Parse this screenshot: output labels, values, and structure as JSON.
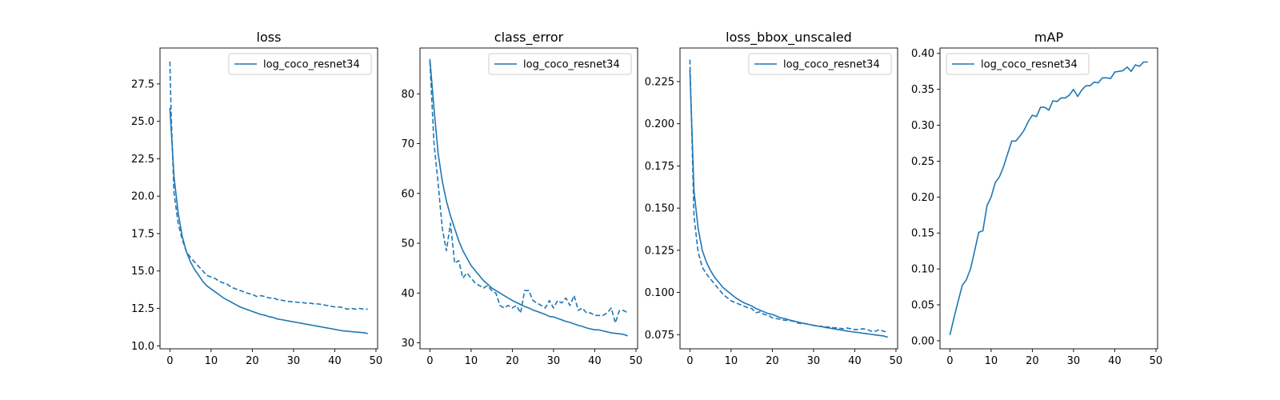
{
  "chart_data": [
    {
      "type": "line",
      "title": "loss",
      "xlim": [
        -2.4,
        50.4
      ],
      "ylim": [
        9.8,
        29.9
      ],
      "xticks": [
        0,
        10,
        20,
        30,
        40,
        50
      ],
      "xtick_labels": [
        "0",
        "10",
        "20",
        "30",
        "40",
        "50"
      ],
      "yticks": [
        10.0,
        12.5,
        15.0,
        17.5,
        20.0,
        22.5,
        25.0,
        27.5
      ],
      "ytick_labels": [
        "10.0",
        "12.5",
        "15.0",
        "17.5",
        "20.0",
        "22.5",
        "25.0",
        "27.5"
      ],
      "legend": {
        "label": "log_coco_resnet34",
        "position": "upper right"
      },
      "series": [
        {
          "name": "log_coco_resnet34",
          "style": "solid",
          "color": "#1f77b4",
          "x": [
            0,
            1,
            2,
            3,
            4,
            5,
            6,
            7,
            8,
            9,
            10,
            11,
            12,
            13,
            14,
            15,
            16,
            17,
            18,
            19,
            20,
            21,
            22,
            23,
            24,
            25,
            26,
            27,
            28,
            29,
            30,
            31,
            32,
            33,
            34,
            35,
            36,
            37,
            38,
            39,
            40,
            41,
            42,
            43,
            44,
            45,
            46,
            47,
            48
          ],
          "y": [
            25.9,
            21.3,
            18.9,
            17.3,
            16.3,
            15.6,
            15.1,
            14.7,
            14.3,
            14.0,
            13.8,
            13.6,
            13.4,
            13.2,
            13.05,
            12.9,
            12.75,
            12.6,
            12.5,
            12.4,
            12.3,
            12.2,
            12.1,
            12.05,
            11.95,
            11.9,
            11.8,
            11.75,
            11.7,
            11.65,
            11.6,
            11.55,
            11.5,
            11.45,
            11.4,
            11.35,
            11.3,
            11.25,
            11.2,
            11.15,
            11.1,
            11.05,
            11.0,
            10.98,
            10.95,
            10.92,
            10.9,
            10.88,
            10.82
          ]
        },
        {
          "name": "",
          "style": "dashed",
          "color": "#1f77b4",
          "x": [
            0,
            0.3,
            1,
            2,
            3,
            4,
            5,
            6,
            7,
            8,
            9,
            10,
            11,
            12,
            13,
            14,
            15,
            16,
            17,
            18,
            19,
            20,
            21,
            22,
            23,
            24,
            25,
            26,
            27,
            28,
            29,
            30,
            31,
            32,
            33,
            34,
            35,
            36,
            37,
            38,
            39,
            40,
            41,
            42,
            43,
            44,
            45,
            46,
            47,
            48
          ],
          "y": [
            29.0,
            25.5,
            20.2,
            18.2,
            17.1,
            16.3,
            15.9,
            15.6,
            15.3,
            15.0,
            14.7,
            14.6,
            14.5,
            14.3,
            14.2,
            14.1,
            13.9,
            13.8,
            13.7,
            13.6,
            13.5,
            13.45,
            13.3,
            13.35,
            13.3,
            13.2,
            13.2,
            13.1,
            13.05,
            13.0,
            12.95,
            12.95,
            12.9,
            12.9,
            12.85,
            12.85,
            12.8,
            12.8,
            12.75,
            12.7,
            12.65,
            12.6,
            12.6,
            12.55,
            12.45,
            12.5,
            12.45,
            12.5,
            12.45,
            12.45
          ]
        }
      ]
    },
    {
      "type": "line",
      "title": "class_error",
      "xlim": [
        -2.4,
        50.4
      ],
      "ylim": [
        28.8,
        89.2
      ],
      "xticks": [
        0,
        10,
        20,
        30,
        40,
        50
      ],
      "xtick_labels": [
        "0",
        "10",
        "20",
        "30",
        "40",
        "50"
      ],
      "yticks": [
        30,
        40,
        50,
        60,
        70,
        80
      ],
      "ytick_labels": [
        "30",
        "40",
        "50",
        "60",
        "70",
        "80"
      ],
      "legend": {
        "label": "log_coco_resnet34",
        "position": "upper right"
      },
      "series": [
        {
          "name": "log_coco_resnet34",
          "style": "solid",
          "color": "#1f77b4",
          "x": [
            0,
            1,
            2,
            3,
            4,
            5,
            6,
            7,
            8,
            9,
            10,
            11,
            12,
            13,
            14,
            15,
            16,
            17,
            18,
            19,
            20,
            21,
            22,
            23,
            24,
            25,
            26,
            27,
            28,
            29,
            30,
            31,
            32,
            33,
            34,
            35,
            36,
            37,
            38,
            39,
            40,
            41,
            42,
            43,
            44,
            45,
            46,
            47,
            48
          ],
          "y": [
            87.0,
            77.0,
            68.0,
            62.5,
            58.5,
            55.5,
            53.0,
            50.5,
            48.5,
            47.0,
            45.5,
            44.5,
            43.5,
            42.5,
            41.8,
            41.0,
            40.5,
            40.0,
            39.5,
            39.0,
            38.5,
            38.1,
            37.7,
            37.3,
            37.0,
            36.6,
            36.3,
            36.0,
            35.7,
            35.3,
            35.2,
            34.9,
            34.6,
            34.3,
            34.1,
            33.8,
            33.5,
            33.3,
            33.0,
            32.8,
            32.6,
            32.6,
            32.4,
            32.2,
            32.0,
            31.9,
            31.8,
            31.7,
            31.4
          ]
        },
        {
          "name": "",
          "style": "dashed",
          "color": "#1f77b4",
          "x": [
            0,
            1,
            2,
            3,
            4,
            5,
            6,
            7,
            8,
            9,
            10,
            11,
            12,
            13,
            14,
            15,
            16,
            17,
            18,
            19,
            20,
            21,
            22,
            23,
            24,
            25,
            26,
            27,
            28,
            29,
            30,
            31,
            32,
            33,
            34,
            35,
            36,
            37,
            38,
            39,
            40,
            41,
            42,
            43,
            44,
            45,
            46,
            47,
            48
          ],
          "y": [
            86.5,
            70.0,
            62.0,
            53.0,
            48.5,
            54.0,
            46.0,
            46.5,
            43.0,
            44.0,
            43.0,
            42.0,
            41.5,
            41.0,
            41.5,
            40.5,
            40.0,
            37.5,
            37.0,
            37.5,
            37.0,
            37.5,
            36.0,
            40.5,
            40.5,
            38.5,
            38.0,
            37.5,
            37.0,
            38.5,
            37.0,
            38.5,
            38.0,
            39.0,
            37.5,
            39.5,
            36.5,
            37.0,
            36.0,
            36.0,
            35.5,
            35.5,
            35.5,
            36.0,
            37.0,
            34.0,
            36.5,
            36.5,
            36.0
          ]
        }
      ]
    },
    {
      "type": "line",
      "title": "loss_bbox_unscaled",
      "xlim": [
        -2.4,
        50.4
      ],
      "ylim": [
        0.0666,
        0.2449
      ],
      "xticks": [
        0,
        10,
        20,
        30,
        40,
        50
      ],
      "xtick_labels": [
        "0",
        "10",
        "20",
        "30",
        "40",
        "50"
      ],
      "yticks": [
        0.075,
        0.1,
        0.125,
        0.15,
        0.175,
        0.2,
        0.225
      ],
      "ytick_labels": [
        "0.075",
        "0.100",
        "0.125",
        "0.150",
        "0.175",
        "0.200",
        "0.225"
      ],
      "legend": {
        "label": "log_coco_resnet34",
        "position": "upper right"
      },
      "series": [
        {
          "name": "log_coco_resnet34",
          "style": "solid",
          "color": "#1f77b4",
          "x": [
            0,
            1,
            2,
            3,
            4,
            5,
            6,
            7,
            8,
            9,
            10,
            11,
            12,
            13,
            14,
            15,
            16,
            17,
            18,
            19,
            20,
            21,
            22,
            23,
            24,
            25,
            26,
            27,
            28,
            29,
            30,
            31,
            32,
            33,
            34,
            35,
            36,
            37,
            38,
            39,
            40,
            41,
            42,
            43,
            44,
            45,
            46,
            47,
            48
          ],
          "y": [
            0.232,
            0.16,
            0.138,
            0.125,
            0.118,
            0.113,
            0.109,
            0.106,
            0.103,
            0.101,
            0.099,
            0.097,
            0.0955,
            0.094,
            0.093,
            0.092,
            0.0905,
            0.0895,
            0.0885,
            0.0875,
            0.087,
            0.086,
            0.085,
            0.0845,
            0.0838,
            0.0832,
            0.0826,
            0.082,
            0.0815,
            0.081,
            0.0805,
            0.0801,
            0.0797,
            0.0792,
            0.0788,
            0.0784,
            0.078,
            0.0776,
            0.0772,
            0.0768,
            0.0765,
            0.0762,
            0.0758,
            0.0755,
            0.0752,
            0.0748,
            0.0745,
            0.0742,
            0.0735
          ]
        },
        {
          "name": "",
          "style": "dashed",
          "color": "#1f77b4",
          "x": [
            0,
            1,
            2,
            3,
            4,
            5,
            6,
            7,
            8,
            9,
            10,
            11,
            12,
            13,
            14,
            15,
            16,
            17,
            18,
            19,
            20,
            21,
            22,
            23,
            24,
            25,
            26,
            27,
            28,
            29,
            30,
            31,
            32,
            33,
            34,
            35,
            36,
            37,
            38,
            39,
            40,
            41,
            42,
            43,
            44,
            45,
            46,
            47,
            48
          ],
          "y": [
            0.238,
            0.145,
            0.124,
            0.115,
            0.111,
            0.108,
            0.105,
            0.102,
            0.099,
            0.097,
            0.095,
            0.094,
            0.093,
            0.092,
            0.091,
            0.0905,
            0.088,
            0.0885,
            0.087,
            0.0865,
            0.085,
            0.0845,
            0.084,
            0.0835,
            0.0835,
            0.083,
            0.082,
            0.0815,
            0.0815,
            0.081,
            0.0805,
            0.08,
            0.08,
            0.0795,
            0.0795,
            0.079,
            0.079,
            0.0785,
            0.079,
            0.0785,
            0.078,
            0.078,
            0.0785,
            0.078,
            0.077,
            0.077,
            0.078,
            0.077,
            0.0765
          ]
        }
      ]
    },
    {
      "type": "line",
      "title": "mAP",
      "xlim": [
        -2.4,
        50.4
      ],
      "ylim": [
        -0.0112,
        0.4075
      ],
      "xticks": [
        0,
        10,
        20,
        30,
        40,
        50
      ],
      "xtick_labels": [
        "0",
        "10",
        "20",
        "30",
        "40",
        "50"
      ],
      "yticks": [
        0.0,
        0.05,
        0.1,
        0.15,
        0.2,
        0.25,
        0.3,
        0.35,
        0.4
      ],
      "ytick_labels": [
        "0.00",
        "0.05",
        "0.10",
        "0.15",
        "0.20",
        "0.25",
        "0.30",
        "0.35",
        "0.40"
      ],
      "legend": {
        "label": "log_coco_resnet34",
        "position": "upper left"
      },
      "series": [
        {
          "name": "log_coco_resnet34",
          "style": "solid",
          "color": "#1f77b4",
          "x": [
            0,
            1,
            2,
            3,
            4,
            5,
            6,
            7,
            8,
            9,
            10,
            11,
            12,
            13,
            14,
            15,
            16,
            17,
            18,
            19,
            20,
            21,
            22,
            23,
            24,
            25,
            26,
            27,
            28,
            29,
            30,
            31,
            32,
            33,
            34,
            35,
            36,
            37,
            38,
            39,
            40,
            41,
            42,
            43,
            44,
            45,
            46,
            47,
            48
          ],
          "y": [
            0.008,
            0.032,
            0.055,
            0.077,
            0.085,
            0.1,
            0.125,
            0.151,
            0.153,
            0.188,
            0.2,
            0.22,
            0.228,
            0.242,
            0.26,
            0.278,
            0.278,
            0.285,
            0.293,
            0.305,
            0.314,
            0.312,
            0.325,
            0.325,
            0.321,
            0.334,
            0.333,
            0.338,
            0.338,
            0.342,
            0.35,
            0.34,
            0.349,
            0.355,
            0.355,
            0.36,
            0.359,
            0.366,
            0.366,
            0.365,
            0.374,
            0.375,
            0.376,
            0.381,
            0.375,
            0.384,
            0.382,
            0.388,
            0.388
          ]
        }
      ]
    }
  ]
}
